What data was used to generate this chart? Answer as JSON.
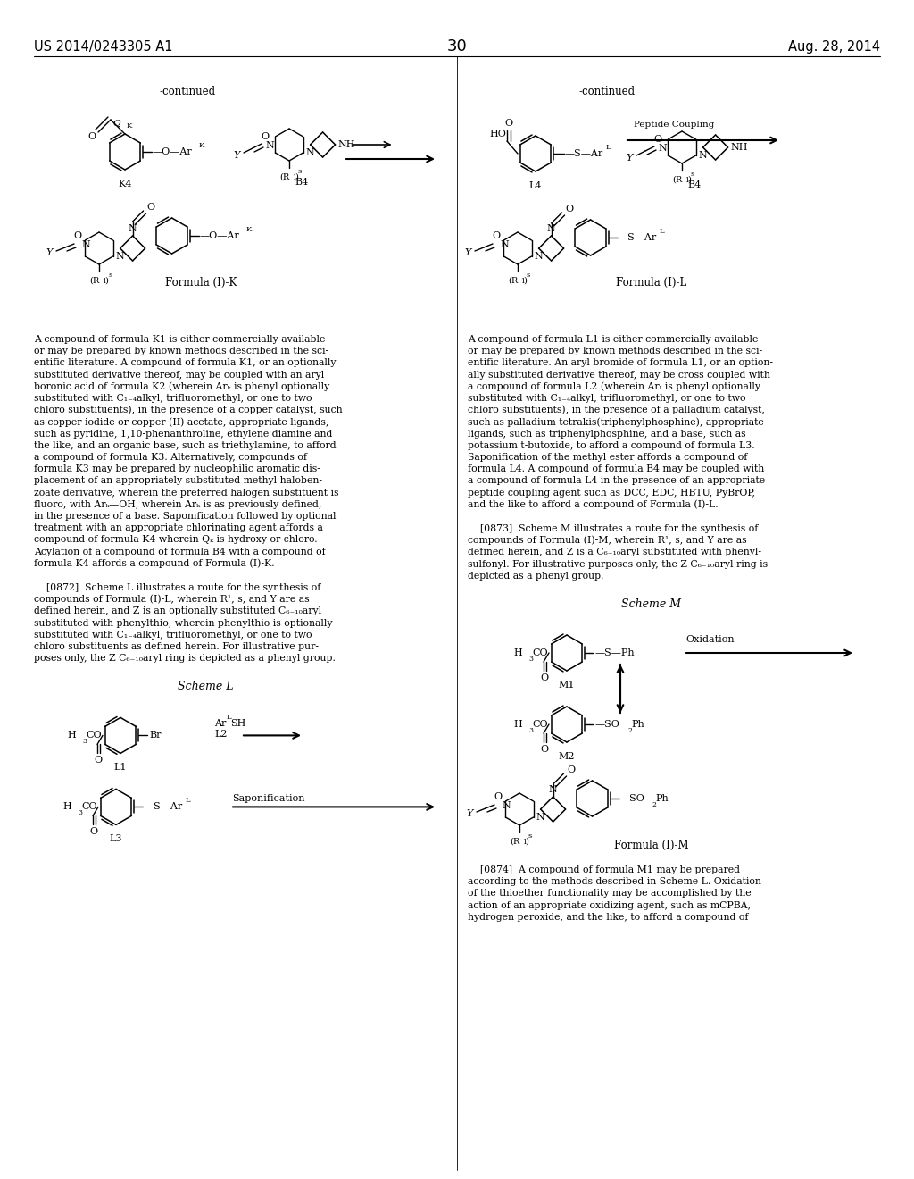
{
  "page_number": "30",
  "patent_number": "US 2014/0243305 A1",
  "date": "Aug. 28, 2014",
  "bg": "#ffffff",
  "left_col_text_1": [
    "A compound of formula K1 is either commercially available",
    "or may be prepared by known methods described in the sci-",
    "entific literature. A compound of formula K1, or an optionally",
    "substituted derivative thereof, may be coupled with an aryl",
    "boronic acid of formula K2 (wherein Arₖ is phenyl optionally",
    "substituted with C₁₋₄alkyl, trifluoromethyl, or one to two",
    "chloro substituents), in the presence of a copper catalyst, such",
    "as copper iodide or copper (II) acetate, appropriate ligands,",
    "such as pyridine, 1,10-phenanthroline, ethylene diamine and",
    "the like, and an organic base, such as triethylamine, to afford",
    "a compound of formula K3. Alternatively, compounds of",
    "formula K3 may be prepared by nucleophilic aromatic dis-",
    "placement of an appropriately substituted methyl haloben-",
    "zoate derivative, wherein the preferred halogen substituent is",
    "fluoro, with Arₖ—OH, wherein Arₖ is as previously defined,",
    "in the presence of a base. Saponification followed by optional",
    "treatment with an appropriate chlorinating agent affords a",
    "compound of formula K4 wherein Qₖ is hydroxy or chloro.",
    "Acylation of a compound of formula B4 with a compound of",
    "formula K4 affords a compound of Formula (I)-K."
  ],
  "left_col_text_2": [
    "    [0872]  Scheme L illustrates a route for the synthesis of",
    "compounds of Formula (I)-L, wherein R¹, s, and Y are as",
    "defined herein, and Z is an optionally substituted C₆₋₁₀aryl",
    "substituted with phenylthio, wherein phenylthio is optionally",
    "substituted with C₁₋₄alkyl, trifluoromethyl, or one to two",
    "chloro substituents as defined herein. For illustrative pur-",
    "poses only, the Z C₆₋₁₀aryl ring is depicted as a phenyl group."
  ],
  "right_col_text_1": [
    "A compound of formula L1 is either commercially available",
    "or may be prepared by known methods described in the sci-",
    "entific literature. An aryl bromide of formula L1, or an option-",
    "ally substituted derivative thereof, may be cross coupled with",
    "a compound of formula L2 (wherein Arₗ is phenyl optionally",
    "substituted with C₁₋₄alkyl, trifluoromethyl, or one to two",
    "chloro substituents), in the presence of a palladium catalyst,",
    "such as palladium tetrakis(triphenylphosphine), appropriate",
    "ligands, such as triphenylphosphine, and a base, such as",
    "potassium t-butoxide, to afford a compound of formula L3.",
    "Saponification of the methyl ester affords a compound of",
    "formula L4. A compound of formula B4 may be coupled with",
    "a compound of formula L4 in the presence of an appropriate",
    "peptide coupling agent such as DCC, EDC, HBTU, PyBrOP,",
    "and the like to afford a compound of Formula (I)-L."
  ],
  "right_col_text_2": [
    "    [0873]  Scheme M illustrates a route for the synthesis of",
    "compounds of Formula (I)-M, wherein R¹, s, and Y are as",
    "defined herein, and Z is a C₆₋₁₀aryl substituted with phenyl-",
    "sulfonyl. For illustrative purposes only, the Z C₆₋₁₀aryl ring is",
    "depicted as a phenyl group."
  ],
  "right_col_text_3": [
    "    [0874]  A compound of formula M1 may be prepared",
    "according to the methods described in Scheme L. Oxidation",
    "of the thioether functionality may be accomplished by the",
    "action of an appropriate oxidizing agent, such as mCPBA,",
    "hydrogen peroxide, and the like, to afford a compound of"
  ]
}
